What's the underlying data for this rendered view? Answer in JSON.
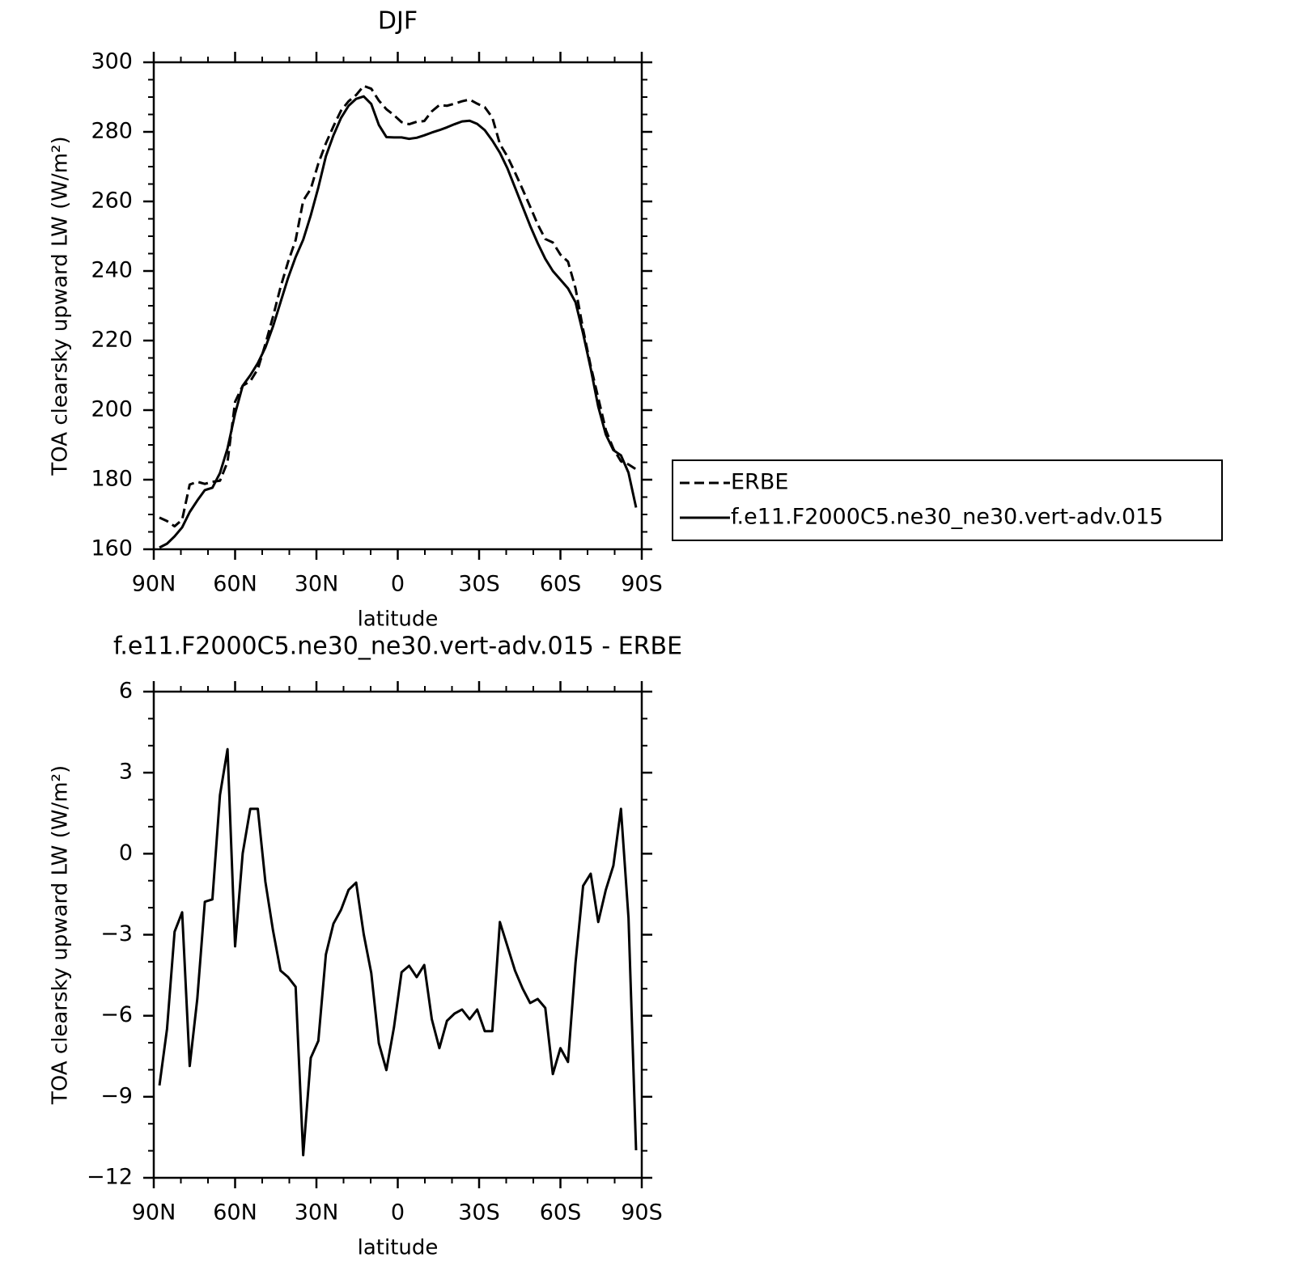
{
  "chart_data": [
    {
      "type": "line",
      "title": "DJF",
      "xlabel": "latitude",
      "ylabel": "TOA clearsky upward LW (W/m²)",
      "xlim": [
        90,
        -90
      ],
      "xticks": [
        {
          "value": 90,
          "label": "90N"
        },
        {
          "value": 60,
          "label": "60N"
        },
        {
          "value": 30,
          "label": "30N"
        },
        0,
        {
          "value": -30,
          "label": "30S"
        },
        {
          "value": -60,
          "label": "60S"
        },
        {
          "value": -90,
          "label": "90S"
        }
      ],
      "ylim": [
        160,
        300
      ],
      "yticks": [
        160,
        180,
        200,
        220,
        240,
        260,
        280,
        300
      ],
      "x_minor_divisions": 3,
      "y_minor_divisions": 4,
      "legend": "right",
      "x": [
        87.9,
        85.11,
        82.32,
        79.53,
        76.74,
        73.95,
        71.16,
        68.37,
        65.58,
        62.79,
        60.0,
        57.2,
        54.41,
        51.62,
        48.83,
        46.04,
        43.25,
        40.46,
        37.67,
        34.88,
        32.09,
        29.3,
        26.51,
        23.72,
        20.93,
        18.14,
        15.35,
        12.56,
        9.77,
        6.98,
        4.19,
        1.4,
        -1.4,
        -4.19,
        -6.98,
        -9.77,
        -12.56,
        -15.35,
        -18.14,
        -20.93,
        -23.72,
        -26.51,
        -29.3,
        -32.09,
        -34.88,
        -37.67,
        -40.46,
        -43.25,
        -46.04,
        -48.83,
        -51.62,
        -54.41,
        -57.2,
        -60.0,
        -62.79,
        -65.58,
        -68.37,
        -71.16,
        -73.95,
        -76.74,
        -79.53,
        -82.32,
        -85.11,
        -87.9
      ],
      "series": [
        {
          "name": "ERBE",
          "color": "#ff0000",
          "line_style": "dashed",
          "values": [
            169.1,
            168.1,
            166.6,
            168.5,
            178.6,
            179.4,
            178.8,
            179.4,
            179.7,
            185.1,
            202.4,
            207.0,
            208.3,
            211.8,
            219.0,
            226.8,
            235.3,
            242.6,
            248.9,
            260.2,
            263.6,
            270.9,
            276.7,
            281.6,
            286.1,
            288.8,
            290.6,
            293.2,
            292.4,
            289.0,
            286.5,
            284.8,
            282.8,
            282.2,
            282.9,
            283.1,
            285.9,
            287.7,
            287.5,
            288.1,
            288.8,
            289.3,
            288.1,
            287.1,
            284.1,
            276.5,
            272.9,
            268.3,
            263.5,
            258.5,
            253.4,
            249.2,
            248.2,
            244.7,
            242.7,
            235.0,
            223.2,
            212.7,
            203.5,
            194.3,
            188.9,
            185.3,
            184.4,
            183.0
          ]
        },
        {
          "name": "f.e11.F2000C5.ne30_ne30.vert-adv.015",
          "color": "#000000",
          "line_style": "solid",
          "values": [
            160.5,
            161.6,
            163.7,
            166.3,
            170.7,
            174,
            177,
            177.7,
            181.9,
            189,
            199,
            207,
            210,
            213.5,
            218,
            224,
            231,
            238,
            244,
            249,
            256,
            264,
            273,
            279,
            284,
            287.5,
            289.5,
            290.2,
            288,
            282,
            278.5,
            278.4,
            278.4,
            278.0,
            278.3,
            279,
            279.8,
            280.5,
            281.3,
            282.2,
            283,
            283.2,
            282.3,
            280.5,
            277.5,
            274,
            269.5,
            264,
            258.5,
            253,
            248,
            243.5,
            240,
            237.5,
            235,
            231,
            222,
            212,
            201,
            193,
            188.5,
            187,
            182,
            172
          ]
        }
      ]
    },
    {
      "type": "line",
      "title": "f.e11.F2000C5.ne30_ne30.vert-adv.015 - ERBE",
      "xlabel": "latitude",
      "ylabel": "TOA clearsky upward LW (W/m²)",
      "xlim": [
        90,
        -90
      ],
      "xticks": [
        {
          "value": 90,
          "label": "90N"
        },
        {
          "value": 60,
          "label": "60N"
        },
        {
          "value": 30,
          "label": "30N"
        },
        0,
        {
          "value": -30,
          "label": "30S"
        },
        {
          "value": -60,
          "label": "60S"
        },
        {
          "value": -90,
          "label": "90S"
        }
      ],
      "ylim": [
        -12,
        6
      ],
      "yticks": [
        {
          "value": -12,
          "label": "−12"
        },
        {
          "value": -9,
          "label": "−9"
        },
        {
          "value": -6,
          "label": "−6"
        },
        {
          "value": -3,
          "label": "−3"
        },
        0,
        3,
        6
      ],
      "x_minor_divisions": 3,
      "y_minor_divisions": 3,
      "x": [
        87.9,
        85.11,
        82.32,
        79.53,
        76.74,
        73.95,
        71.16,
        68.37,
        65.58,
        62.79,
        60.0,
        57.2,
        54.41,
        51.62,
        48.83,
        46.04,
        43.25,
        40.46,
        37.67,
        34.88,
        32.09,
        29.3,
        26.51,
        23.72,
        20.93,
        18.14,
        15.35,
        12.56,
        9.77,
        6.98,
        4.19,
        1.4,
        -1.4,
        -4.19,
        -6.98,
        -9.77,
        -12.56,
        -15.35,
        -18.14,
        -20.93,
        -23.72,
        -26.51,
        -29.3,
        -32.09,
        -34.88,
        -37.67,
        -40.46,
        -43.25,
        -46.04,
        -48.83,
        -51.62,
        -54.41,
        -57.2,
        -60.0,
        -62.79,
        -65.58,
        -68.37,
        -71.16,
        -73.95,
        -76.74,
        -79.53,
        -82.32,
        -85.11,
        -87.9
      ],
      "series": [
        {
          "color": "#000000",
          "line_style": "solid",
          "values": [
            -8.58,
            -6.49,
            -2.89,
            -2.17,
            -7.86,
            -5.38,
            -1.78,
            -1.69,
            2.17,
            3.87,
            -3.43,
            0.01,
            1.66,
            1.66,
            -1.04,
            -2.83,
            -4.33,
            -4.57,
            -4.93,
            -11.16,
            -7.56,
            -6.93,
            -3.73,
            -2.59,
            -2.08,
            -1.34,
            -1.07,
            -2.98,
            -4.42,
            -7.02,
            -8.01,
            -6.43,
            -4.39,
            -4.15,
            -4.57,
            -4.12,
            -6.13,
            -7.2,
            -6.19,
            -5.92,
            -5.77,
            -6.13,
            -5.77,
            -6.57,
            -6.57,
            -2.53,
            -3.43,
            -4.33,
            -4.99,
            -5.53,
            -5.38,
            -5.71,
            -8.16,
            -7.2,
            -7.71,
            -4.03,
            -1.19,
            -0.74,
            -2.53,
            -1.34,
            -0.44,
            1.66,
            -2.38,
            -10.98
          ]
        }
      ]
    }
  ]
}
